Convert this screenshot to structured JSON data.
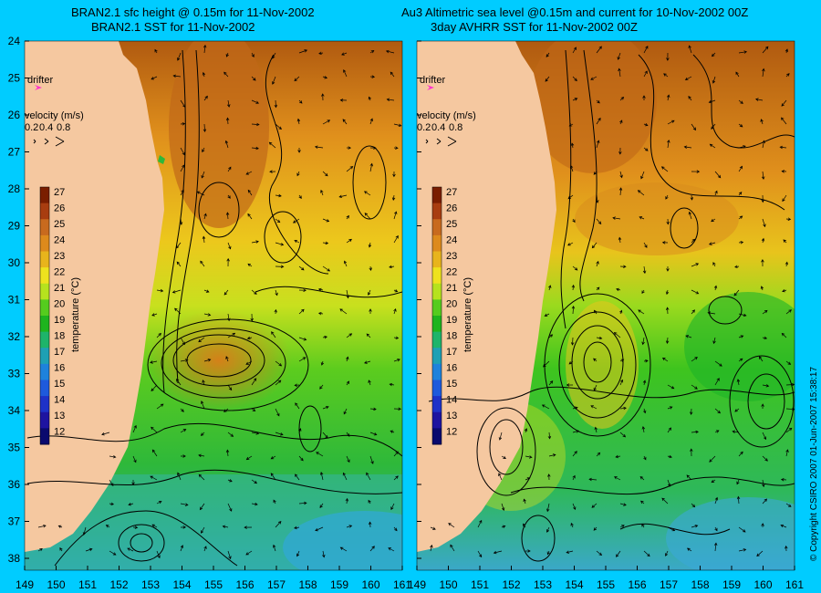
{
  "left_panel": {
    "title_line1": "BRAN2.1 sfc height @ 0.15m for 11-Nov-2002",
    "title_line2": "BRAN2.1 SST for 11-Nov-2002"
  },
  "right_panel": {
    "title_line1": "Au3 Altimetric sea level  @0.15m and current for 10-Nov-2002 00Z",
    "title_line2": "3day AVHRR SST for 11-Nov-2002 00Z"
  },
  "legend": {
    "drifter_label": "drifter",
    "velocity_label": "velocity (m/s)",
    "velocity_values": [
      "0.2",
      "0.4",
      "0.8"
    ]
  },
  "colorbar": {
    "label": "temperature (°C)",
    "min": 12,
    "max": 27,
    "ticks": [
      "27",
      "26",
      "25",
      "24",
      "23",
      "22",
      "21",
      "20",
      "19",
      "18",
      "17",
      "16",
      "15",
      "14",
      "13",
      "12"
    ],
    "colors": [
      "#7a1e00",
      "#a83d10",
      "#c86a1e",
      "#dd8a1c",
      "#e8b41c",
      "#eee21e",
      "#b6e21e",
      "#55cc1e",
      "#1eb41e",
      "#1eb46a",
      "#1ea0b4",
      "#1e82dc",
      "#1e5adc",
      "#1e32c8",
      "#1e14a0",
      "#0a0a6e"
    ]
  },
  "axes": {
    "y_ticks": [
      "24",
      "25",
      "26",
      "27",
      "28",
      "29",
      "30",
      "31",
      "32",
      "33",
      "34",
      "35",
      "36",
      "37",
      "38"
    ],
    "x_ticks": [
      "149",
      "150",
      "151",
      "152",
      "153",
      "154",
      "155",
      "156",
      "157",
      "158",
      "159",
      "160",
      "161"
    ]
  },
  "copyright": "© Copyright CSIRO 2007   01-Jun-2007 15:38:17",
  "colors": {
    "background": "#00ccff",
    "land": "#f5c8a0",
    "drifter": "#ff33cc"
  }
}
